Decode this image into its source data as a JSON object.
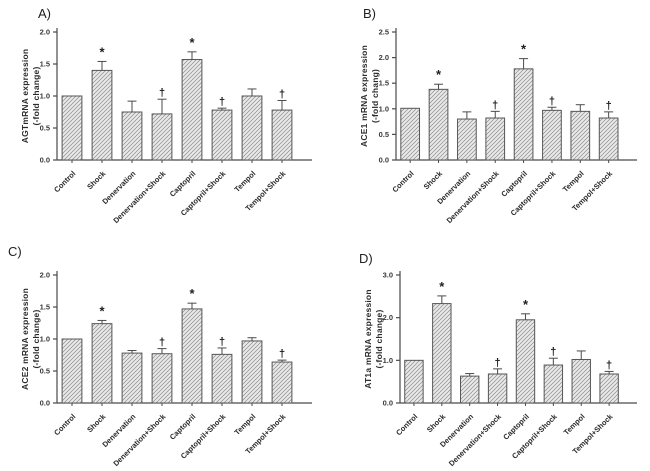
{
  "figure": {
    "background": "#ffffff",
    "bar_fill": "#e9e9e9",
    "hatch_color": "#8c8c8c",
    "bar_border": "#565656",
    "axis_color": "#4a4a4a",
    "text_color": "#2b2b2b"
  },
  "chart_data": [
    {
      "type": "bar",
      "panel_label": "A)",
      "ylabel_line1": "AGTmRNA expression",
      "ylabel_line2": "(-fold change)",
      "ylim": [
        0,
        2.0
      ],
      "yticks": [
        "0.0",
        "0.5",
        "1.0",
        "1.5",
        "2.0"
      ],
      "categories": [
        "Control",
        "Shock",
        "Denervation",
        "Denervation+Shock",
        "Captopril",
        "Captopril+Shock",
        "Tempol",
        "Tempol+Shock"
      ],
      "values": [
        1.0,
        1.4,
        0.75,
        0.72,
        1.57,
        0.78,
        1.0,
        0.78
      ],
      "errors": [
        0,
        0.14,
        0.17,
        0.23,
        0.12,
        0.03,
        0.11,
        0.15
      ],
      "sig": [
        "",
        "*",
        "",
        "†",
        "*",
        "†",
        "",
        "†"
      ],
      "grid": "off",
      "legend": "none"
    },
    {
      "type": "bar",
      "panel_label": "B)",
      "ylabel_line1": "ACE1 mRNA expression",
      "ylabel_line2": "(-fold chang)",
      "ylim": [
        0,
        2.5
      ],
      "yticks": [
        "0.0",
        "0.5",
        "1.0",
        "1.5",
        "2.0",
        "2.5"
      ],
      "categories": [
        "Control",
        "Shock",
        "Denervation",
        "Denervation+Shock",
        "Captopril",
        "Captopril+Shock",
        "Tempol",
        "Tempol+Shock"
      ],
      "values": [
        1.01,
        1.38,
        0.8,
        0.82,
        1.78,
        0.97,
        0.95,
        0.82
      ],
      "errors": [
        0,
        0.1,
        0.14,
        0.13,
        0.2,
        0.06,
        0.13,
        0.12
      ],
      "sig": [
        "",
        "*",
        "",
        "†",
        "*",
        "†",
        "",
        "†"
      ],
      "grid": "off",
      "legend": "none"
    },
    {
      "type": "bar",
      "panel_label": "C)",
      "ylabel_line1": "ACE2 mRNA expression",
      "ylabel_line2": "(-fold change)",
      "ylim": [
        0,
        2.0
      ],
      "yticks": [
        "0.0",
        "0.5",
        "1.0",
        "1.5",
        "2.0"
      ],
      "categories": [
        "Control",
        "Shock",
        "Denervation",
        "Denervation+Shock",
        "Captopril",
        "Captopril+Shock",
        "Tempol",
        "Tempol+Shock"
      ],
      "values": [
        1.0,
        1.24,
        0.78,
        0.77,
        1.47,
        0.76,
        0.97,
        0.64
      ],
      "errors": [
        0,
        0.05,
        0.04,
        0.08,
        0.09,
        0.1,
        0.05,
        0.03
      ],
      "sig": [
        "",
        "*",
        "",
        "†",
        "*",
        "†",
        "",
        "†"
      ],
      "grid": "off",
      "legend": "none"
    },
    {
      "type": "bar",
      "panel_label": "D)",
      "ylabel_line1": "AT1a mRNA expression",
      "ylabel_line2": "(-fold change)",
      "ylim": [
        0,
        3.0
      ],
      "yticks": [
        "0.0",
        "1.0",
        "2.0",
        "3.0"
      ],
      "categories": [
        "Control",
        "Shock",
        "Denervation",
        "Denervation+Shock",
        "Captopril",
        "Captopril+Shock",
        "Tempol",
        "Tempol+Shock"
      ],
      "values": [
        1.0,
        2.33,
        0.63,
        0.68,
        1.95,
        0.89,
        1.02,
        0.68
      ],
      "errors": [
        0,
        0.18,
        0.06,
        0.12,
        0.14,
        0.16,
        0.2,
        0.06
      ],
      "sig": [
        "",
        "*",
        "",
        "†",
        "*",
        "†",
        "",
        "†"
      ],
      "grid": "off",
      "legend": "none"
    }
  ]
}
